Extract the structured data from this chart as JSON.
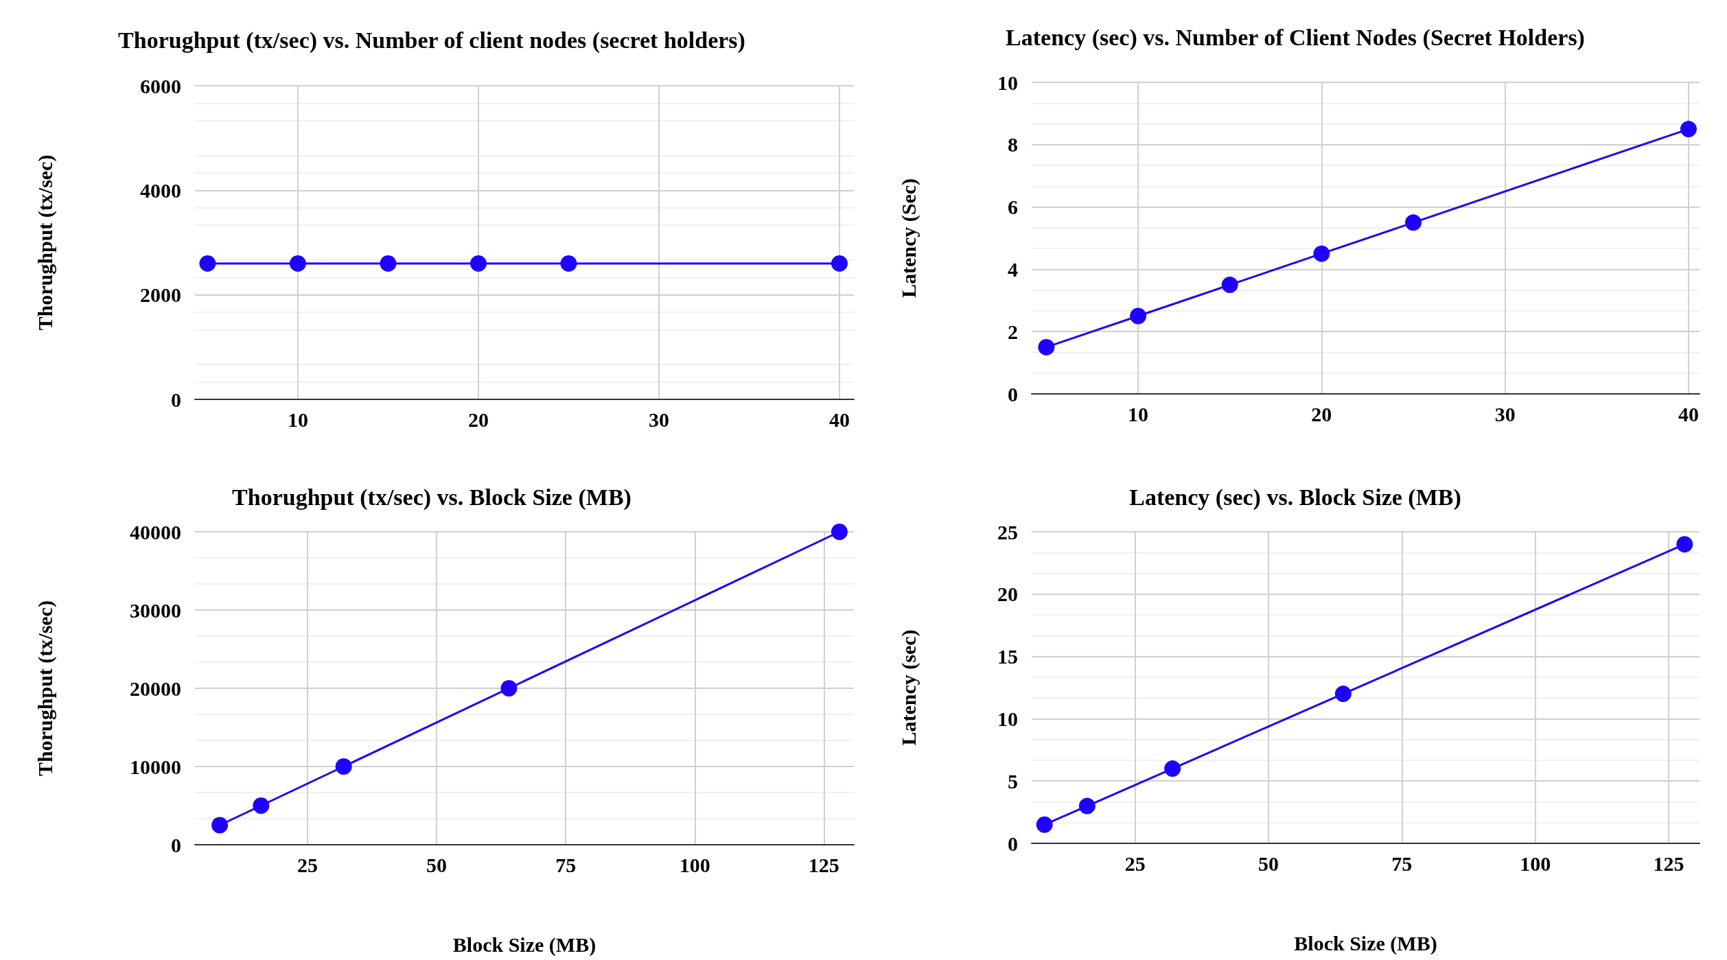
{
  "chart_data": [
    {
      "type": "line",
      "title": "Thorughput (tx/sec) vs. Number of client nodes (secret holders)",
      "ylabel": "Thorughput (tx/sec)",
      "x": [
        5,
        10,
        15,
        20,
        25,
        40
      ],
      "series": [
        {
          "color": "#1f00ff",
          "values": [
            2600,
            2600,
            2600,
            2600,
            2600,
            2600
          ]
        }
      ],
      "xlim": [
        4.3,
        40.8
      ],
      "xticks": [
        10,
        20,
        30,
        40
      ],
      "ylim": [
        0,
        6000
      ],
      "yticks": [
        0,
        2000,
        4000,
        6000
      ],
      "grid": true,
      "marker": "circle"
    },
    {
      "type": "line",
      "title": "Latency (sec) vs. Number of Client Nodes (Secret Holders)",
      "ylabel": "Latency (Sec)",
      "x": [
        5,
        10,
        15,
        20,
        25,
        40
      ],
      "series": [
        {
          "color": "#1f00ff",
          "values": [
            1.5,
            2.5,
            3.5,
            4.5,
            5.5,
            8.5
          ]
        }
      ],
      "xlim": [
        4.2,
        40.6
      ],
      "xticks": [
        10,
        20,
        30,
        40
      ],
      "ylim": [
        0,
        10
      ],
      "yticks": [
        0,
        2,
        4,
        6,
        8,
        10
      ],
      "grid": true,
      "marker": "circle"
    },
    {
      "type": "line",
      "title": "Thorughput (tx/sec) vs. Block Size (MB)",
      "xlabel": "Block Size (MB)",
      "ylabel": "Thorughput (tx/sec)",
      "x": [
        8,
        16,
        32,
        64,
        128
      ],
      "series": [
        {
          "color": "#1f00ff",
          "values": [
            2500,
            5000,
            10000,
            20000,
            40000
          ]
        }
      ],
      "xlim": [
        3.2,
        130.8
      ],
      "xticks": [
        25,
        50,
        75,
        100,
        125
      ],
      "ylim": [
        0,
        40000
      ],
      "yticks": [
        0,
        10000,
        20000,
        30000,
        40000
      ],
      "grid": true,
      "marker": "circle"
    },
    {
      "type": "line",
      "title": "Latency (sec) vs. Block Size (MB)",
      "xlabel": "Block Size (MB)",
      "ylabel": "Latency (sec)",
      "x": [
        8,
        16,
        32,
        64,
        128
      ],
      "series": [
        {
          "color": "#1f00ff",
          "values": [
            1.5,
            3,
            6,
            12,
            24
          ]
        }
      ],
      "xlim": [
        5.6,
        130.8
      ],
      "xticks": [
        25,
        50,
        75,
        100,
        125
      ],
      "ylim": [
        0,
        25
      ],
      "yticks": [
        0,
        5,
        10,
        15,
        20,
        25
      ],
      "grid": true,
      "marker": "circle"
    }
  ]
}
